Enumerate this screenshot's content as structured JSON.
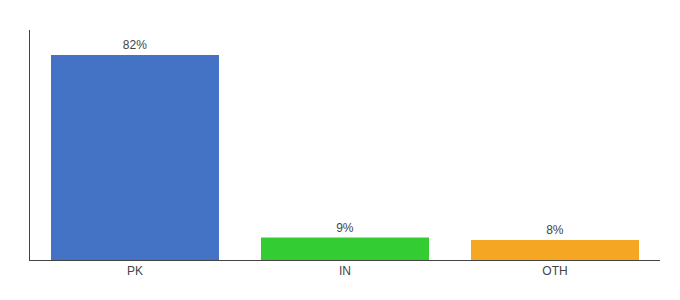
{
  "chart_data": {
    "type": "bar",
    "categories": [
      "PK",
      "IN",
      "OTH"
    ],
    "values": [
      82,
      9,
      8
    ],
    "value_labels": [
      "82%",
      "9%",
      "8%"
    ],
    "data_labels": true,
    "colors": [
      "#4472c4",
      "#33cc33",
      "#f5a623"
    ],
    "ylim": [
      0,
      92
    ],
    "tick_labels": "x",
    "grid": false
  }
}
